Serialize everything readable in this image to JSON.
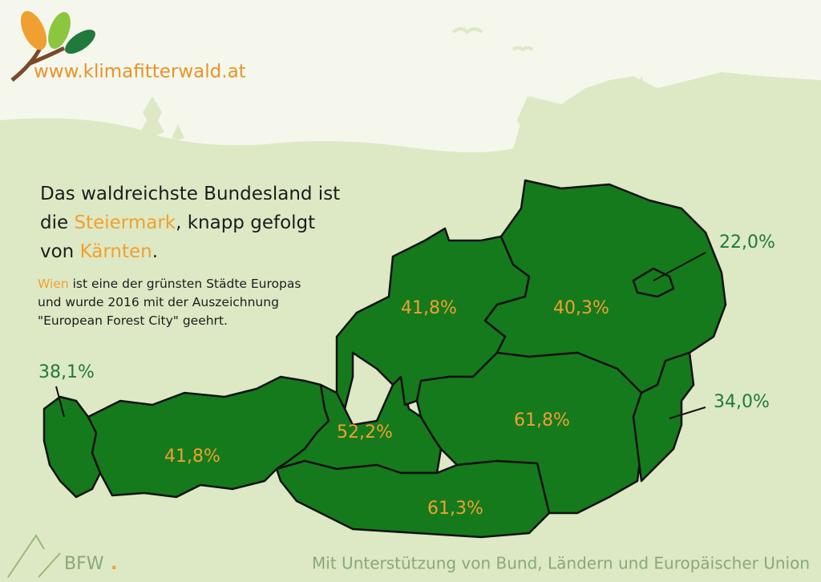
{
  "header": {
    "url": "www.klimafitterwald.at"
  },
  "headline": {
    "lines": [
      [
        {
          "text": "Das waldreichste Bundesland ist",
          "color": "#1c1c1c"
        }
      ],
      [
        {
          "text": "die ",
          "color": "#1c1c1c"
        },
        {
          "text": "Steiermark",
          "color": "#f0a030"
        },
        {
          "text": ", knapp gefolgt",
          "color": "#1c1c1c"
        }
      ],
      [
        {
          "text": "von ",
          "color": "#1c1c1c"
        },
        {
          "text": "Kärnten",
          "color": "#f0a030"
        },
        {
          "text": ".",
          "color": "#1c1c1c"
        }
      ]
    ]
  },
  "note": {
    "lines": [
      [
        {
          "text": "Wien",
          "color": "#f0a030"
        },
        {
          "text": " ist eine der grünsten Städte Europas",
          "color": "#1c1c1c"
        }
      ],
      [
        {
          "text": "und wurde 2016 mit der Auszeichnung",
          "color": "#1c1c1c"
        }
      ],
      [
        {
          "text": "\"European Forest City\" geehrt.",
          "color": "#1c1c1c"
        }
      ]
    ]
  },
  "regions": [
    {
      "label": "38,1%",
      "color": "#1f7a3c"
    },
    {
      "label": "41,8%",
      "color": "#f0a030"
    },
    {
      "label": "52,2%",
      "color": "#f0a030"
    },
    {
      "label": "41,8%",
      "color": "#f0a030"
    },
    {
      "label": "40,3%",
      "color": "#f0a030"
    },
    {
      "label": "22,0%",
      "color": "#1f7a3c"
    },
    {
      "label": "34,0%",
      "color": "#1f7a3c"
    },
    {
      "label": "61,8%",
      "color": "#f0a030"
    },
    {
      "label": "61,3%",
      "color": "#f0a030"
    }
  ],
  "footer": {
    "logo": "BFW",
    "logo_dot": ".",
    "text": "Mit Unterstützung von Bund, Ländern und Europäischer Union"
  }
}
